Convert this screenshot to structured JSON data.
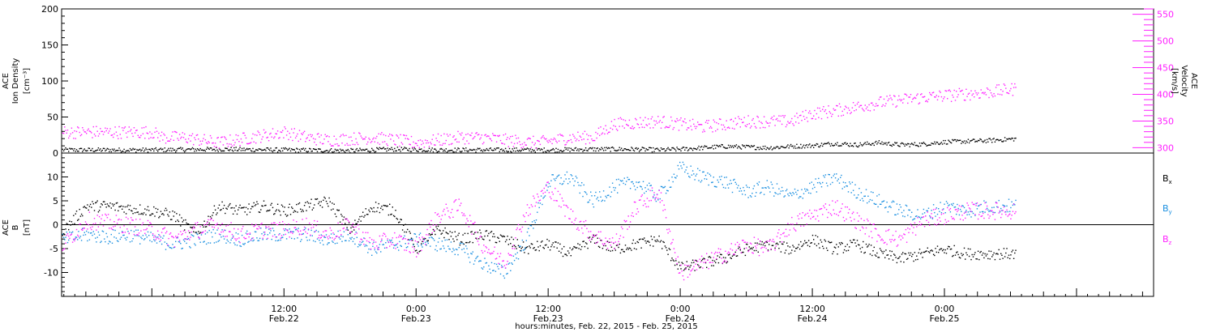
{
  "colors": {
    "black": "#000000",
    "magenta": "#ff20ff",
    "blue": "#1a8fe0"
  },
  "chart_data": [
    {
      "type": "scatter",
      "panel": "top",
      "ylabel_left": [
        "ACE",
        "Ion Density",
        "[cm⁻³]"
      ],
      "ylabel_right": [
        "ACE",
        "Velocity",
        "[km/s]"
      ],
      "ylim_left": [
        0,
        200
      ],
      "ylim_right": [
        290,
        560
      ],
      "yticks_left": [
        "0",
        "50",
        "100",
        "150",
        "200"
      ],
      "yticks_right": [
        "300",
        "350",
        "400",
        "450",
        "500",
        "550"
      ],
      "grid": false,
      "series": [
        {
          "axis": "left",
          "color": "#000000",
          "points": [
            [
              0,
              5
            ],
            [
              6,
              6
            ],
            [
              12,
              5
            ],
            [
              18,
              4
            ],
            [
              22,
              6
            ],
            [
              26,
              5
            ],
            [
              30,
              5
            ],
            [
              36,
              5
            ],
            [
              40,
              6
            ],
            [
              44,
              6
            ],
            [
              46,
              5
            ],
            [
              48,
              6
            ],
            [
              50,
              8
            ],
            [
              52,
              10
            ],
            [
              54,
              9
            ],
            [
              56,
              8
            ],
            [
              58,
              10
            ],
            [
              60,
              11
            ],
            [
              62,
              14
            ],
            [
              64,
              12
            ],
            [
              66,
              15
            ],
            [
              68,
              12
            ],
            [
              70,
              13
            ],
            [
              72,
              16
            ],
            [
              74,
              17
            ],
            [
              76,
              18
            ],
            [
              78,
              20
            ],
            [
              80,
              22
            ],
            [
              82,
              22
            ],
            [
              84,
              25
            ],
            [
              86,
              28
            ],
            [
              88,
              24
            ],
            [
              90,
              18
            ],
            [
              92,
              14
            ],
            [
              94,
              16
            ],
            [
              96,
              22
            ],
            [
              98,
              23
            ],
            [
              100,
              25
            ],
            [
              102,
              24
            ],
            [
              104,
              18
            ],
            [
              106,
              14
            ],
            [
              108,
              12
            ],
            [
              110,
              10
            ],
            [
              112,
              8
            ],
            [
              114,
              7
            ],
            [
              116,
              6
            ],
            [
              120,
              5
            ],
            [
              124,
              5
            ],
            [
              128,
              4
            ],
            [
              132,
              5
            ],
            [
              136,
              4
            ],
            [
              140,
              4
            ],
            [
              144,
              4
            ],
            [
              148,
              4
            ],
            [
              152,
              5
            ]
          ]
        },
        {
          "axis": "right",
          "color": "#ff20ff",
          "points": [
            [
              0,
              330
            ],
            [
              1,
              320
            ],
            [
              3,
              320
            ],
            [
              6,
              310
            ],
            [
              9,
              320
            ],
            [
              12,
              330
            ],
            [
              14,
              320
            ],
            [
              16,
              315
            ],
            [
              20,
              320
            ],
            [
              24,
              310
            ],
            [
              28,
              320
            ],
            [
              30,
              320
            ],
            [
              32,
              315
            ],
            [
              35,
              310
            ],
            [
              38,
              320
            ],
            [
              40,
              320
            ],
            [
              42,
              345
            ],
            [
              46,
              350
            ],
            [
              50,
              340
            ],
            [
              54,
              350
            ],
            [
              58,
              350
            ],
            [
              60,
              365
            ],
            [
              62,
              370
            ],
            [
              66,
              385
            ],
            [
              70,
              395
            ],
            [
              73,
              400
            ],
            [
              76,
              405
            ],
            [
              80,
              415
            ],
            [
              84,
              420
            ],
            [
              86,
              435
            ],
            [
              88,
              445
            ],
            [
              90,
              455
            ],
            [
              94,
              460
            ],
            [
              98,
              465
            ],
            [
              100,
              460
            ],
            [
              102,
              450
            ],
            [
              104,
              445
            ],
            [
              106,
              440
            ],
            [
              108,
              440
            ],
            [
              110,
              445
            ],
            [
              112,
              465
            ],
            [
              114,
              480
            ],
            [
              116,
              490
            ],
            [
              118,
              495
            ],
            [
              120,
              505
            ],
            [
              122,
              500
            ],
            [
              124,
              495
            ],
            [
              126,
              485
            ],
            [
              128,
              475
            ],
            [
              130,
              470
            ],
            [
              132,
              470
            ],
            [
              134,
              465
            ],
            [
              136,
              465
            ],
            [
              138,
              470
            ],
            [
              140,
              475
            ],
            [
              142,
              475
            ],
            [
              144,
              475
            ],
            [
              146,
              480
            ],
            [
              148,
              480
            ],
            [
              150,
              475
            ],
            [
              152,
              470
            ]
          ]
        }
      ]
    },
    {
      "type": "scatter",
      "panel": "bottom",
      "ylabel_left": [
        "ACE",
        "B",
        "[nT]"
      ],
      "ylim": [
        -15,
        15
      ],
      "yticks": [
        "-10",
        "-5",
        "0",
        "5",
        "10"
      ],
      "zero_line": true,
      "grid": false,
      "legend_labels": {
        "bx": "B",
        "bx_sub": "x",
        "by": "B",
        "by_sub": "y",
        "bz": "B",
        "bz_sub": "z"
      },
      "legend_position": "right",
      "x_axis": {
        "range_hours": [
          -8.2,
          91
        ],
        "xlabel": "hours:minutes, Feb. 22, 2015 - Feb. 25, 2015",
        "tick_labels": [
          {
            "hour": 12,
            "line1": "12:00",
            "line2": "Feb.22"
          },
          {
            "hour": 24,
            "line1": "0:00",
            "line2": "Feb.23"
          },
          {
            "hour": 36,
            "line1": "12:00",
            "line2": "Feb.23"
          },
          {
            "hour": 48,
            "line1": "0:00",
            "line2": "Feb.24"
          },
          {
            "hour": 60,
            "line1": "12:00",
            "line2": "Feb.24"
          },
          {
            "hour": 72,
            "line1": "0:00",
            "line2": "Feb.25"
          }
        ]
      },
      "series": [
        {
          "name": "Bx",
          "color": "#000000",
          "points": [
            [
              -8,
              -1
            ],
            [
              -6,
              4
            ],
            [
              -4,
              4
            ],
            [
              -2,
              3.5
            ],
            [
              0,
              3
            ],
            [
              2,
              2
            ],
            [
              4,
              -2
            ],
            [
              6,
              4
            ],
            [
              8,
              3
            ],
            [
              10,
              4
            ],
            [
              12,
              3
            ],
            [
              14,
              4
            ],
            [
              16,
              5
            ],
            [
              18,
              -1
            ],
            [
              20,
              4
            ],
            [
              22,
              3
            ],
            [
              24,
              -5
            ],
            [
              26,
              -1
            ],
            [
              28,
              -3
            ],
            [
              30,
              -2
            ],
            [
              32,
              -3
            ],
            [
              34,
              -5
            ],
            [
              36,
              -4
            ],
            [
              38,
              -6
            ],
            [
              40,
              -3
            ],
            [
              42,
              -5
            ],
            [
              44,
              -4
            ],
            [
              46,
              -3
            ],
            [
              48,
              -9
            ],
            [
              50,
              -8
            ],
            [
              52,
              -7
            ],
            [
              54,
              -5
            ],
            [
              56,
              -4
            ],
            [
              58,
              -5
            ],
            [
              60,
              -3
            ],
            [
              62,
              -5
            ],
            [
              64,
              -4
            ],
            [
              66,
              -6
            ],
            [
              68,
              -7
            ],
            [
              70,
              -6
            ],
            [
              72,
              -5
            ],
            [
              74,
              -6
            ],
            [
              76,
              -6
            ],
            [
              78,
              -6
            ]
          ]
        },
        {
          "name": "By",
          "color": "#1a8fe0",
          "points": [
            [
              -8,
              -3
            ],
            [
              -6,
              -2
            ],
            [
              -4,
              -2.5
            ],
            [
              -2,
              -2
            ],
            [
              0,
              -3
            ],
            [
              2,
              -4
            ],
            [
              4,
              -3
            ],
            [
              6,
              -2
            ],
            [
              8,
              -3
            ],
            [
              10,
              -2
            ],
            [
              12,
              -2
            ],
            [
              14,
              -2
            ],
            [
              16,
              -3
            ],
            [
              18,
              -2
            ],
            [
              20,
              -5
            ],
            [
              22,
              -4
            ],
            [
              24,
              -3
            ],
            [
              26,
              -4
            ],
            [
              28,
              -5
            ],
            [
              30,
              -8
            ],
            [
              32,
              -10
            ],
            [
              34,
              -3
            ],
            [
              36,
              9
            ],
            [
              38,
              10
            ],
            [
              40,
              5
            ],
            [
              42,
              8
            ],
            [
              44,
              9
            ],
            [
              46,
              6
            ],
            [
              48,
              12
            ],
            [
              50,
              10
            ],
            [
              52,
              9
            ],
            [
              54,
              7
            ],
            [
              56,
              8
            ],
            [
              58,
              6
            ],
            [
              60,
              8
            ],
            [
              62,
              10
            ],
            [
              64,
              7
            ],
            [
              66,
              5
            ],
            [
              68,
              3
            ],
            [
              70,
              2
            ],
            [
              72,
              4
            ],
            [
              74,
              3
            ],
            [
              76,
              4
            ],
            [
              78,
              4
            ]
          ]
        },
        {
          "name": "Bz",
          "color": "#ff20ff",
          "points": [
            [
              -8,
              -4
            ],
            [
              -6,
              1
            ],
            [
              -4,
              0.5
            ],
            [
              -2,
              0
            ],
            [
              0,
              -1
            ],
            [
              2,
              -3
            ],
            [
              4,
              -1
            ],
            [
              6,
              0
            ],
            [
              8,
              -2
            ],
            [
              10,
              -1
            ],
            [
              12,
              -1
            ],
            [
              14,
              0
            ],
            [
              16,
              -2
            ],
            [
              18,
              0
            ],
            [
              20,
              -4
            ],
            [
              22,
              -3
            ],
            [
              24,
              -5
            ],
            [
              26,
              2
            ],
            [
              28,
              4
            ],
            [
              30,
              -4
            ],
            [
              32,
              -8
            ],
            [
              34,
              3
            ],
            [
              36,
              8
            ],
            [
              38,
              2
            ],
            [
              40,
              -2
            ],
            [
              42,
              -4
            ],
            [
              44,
              4
            ],
            [
              46,
              7
            ],
            [
              48,
              -10
            ],
            [
              50,
              -8
            ],
            [
              52,
              -6
            ],
            [
              54,
              -4
            ],
            [
              56,
              -5
            ],
            [
              58,
              0
            ],
            [
              60,
              2
            ],
            [
              62,
              4
            ],
            [
              64,
              1
            ],
            [
              66,
              -2
            ],
            [
              68,
              -3
            ],
            [
              70,
              1
            ],
            [
              72,
              2
            ],
            [
              74,
              3
            ],
            [
              76,
              3
            ],
            [
              78,
              3
            ]
          ]
        }
      ]
    }
  ]
}
